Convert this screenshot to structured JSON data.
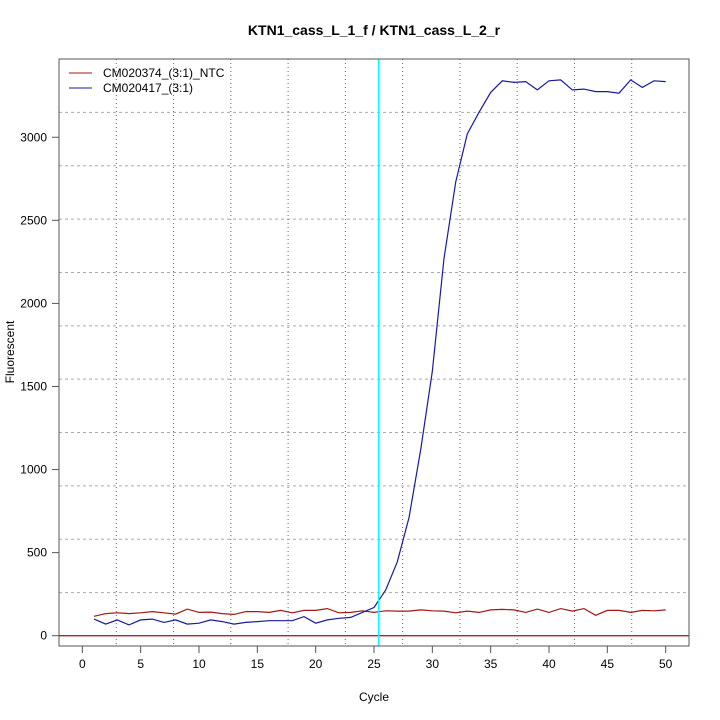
{
  "chart_data": {
    "type": "line",
    "title": "KTN1_cass_L_1_f / KTN1_cass_L_2_r",
    "xlabel": "Cycle",
    "ylabel": "Fluorescent",
    "xlim": [
      -2,
      52
    ],
    "ylim": [
      -62,
      3471
    ],
    "xticks": [
      0,
      5,
      10,
      15,
      20,
      25,
      30,
      35,
      40,
      45,
      50
    ],
    "yticks": [
      0,
      500,
      1000,
      1500,
      2000,
      2500,
      3000
    ],
    "grid": true,
    "legend_position": "top-left",
    "threshold": {
      "value": 0,
      "color": "#B22222"
    },
    "ct_marker": {
      "cycle": 25.4,
      "color": "#00FFFF"
    },
    "x": [
      1,
      2,
      3,
      4,
      5,
      6,
      7,
      8,
      9,
      10,
      11,
      12,
      13,
      14,
      15,
      16,
      17,
      18,
      19,
      20,
      21,
      22,
      23,
      24,
      25,
      26,
      27,
      28,
      29,
      30,
      31,
      32,
      33,
      34,
      35,
      36,
      37,
      38,
      39,
      40,
      41,
      42,
      43,
      44,
      45,
      46,
      47,
      48,
      49,
      50
    ],
    "series": [
      {
        "name": "CM020374_(3:1)_NTC",
        "color": "#A01818",
        "values": [
          117,
          133,
          138,
          133,
          138,
          145,
          138,
          130,
          160,
          140,
          142,
          133,
          128,
          145,
          145,
          140,
          152,
          138,
          152,
          152,
          163,
          138,
          140,
          150,
          140,
          150,
          148,
          148,
          155,
          150,
          148,
          138,
          148,
          140,
          155,
          158,
          155,
          140,
          160,
          140,
          163,
          148,
          163,
          123,
          152,
          152,
          140,
          152,
          150,
          155
        ]
      },
      {
        "name": "CM020417_(3:1)",
        "color": "#1A1AA0",
        "values": [
          100,
          70,
          95,
          65,
          95,
          100,
          80,
          95,
          70,
          75,
          95,
          85,
          70,
          80,
          85,
          90,
          90,
          90,
          115,
          75,
          95,
          105,
          110,
          140,
          170,
          275,
          445,
          710,
          1120,
          1590,
          2270,
          2730,
          3020,
          3150,
          3270,
          3340,
          3330,
          3335,
          3285,
          3340,
          3345,
          3285,
          3290,
          3275,
          3275,
          3265,
          3345,
          3300,
          3340,
          3335
        ]
      }
    ]
  }
}
